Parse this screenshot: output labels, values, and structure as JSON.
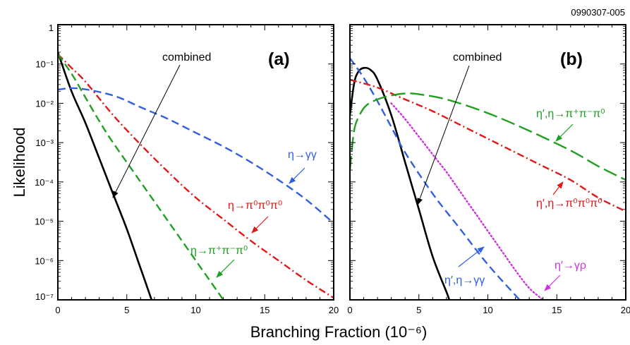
{
  "figure_id": "0990307-005",
  "ylabel": "Likelihood",
  "xlabel": "Branching Fraction (10⁻⁶)",
  "colors": {
    "combined": "#000000",
    "gammagamma": "#3060e0",
    "threepi0": "#e01818",
    "pipipi0": "#20a020",
    "gammarho": "#cc33dd"
  },
  "chart_data": [
    {
      "type": "line",
      "panel_label": "(a)",
      "xlim": [
        0,
        20
      ],
      "ylim_log10": [
        -7,
        0
      ],
      "yscale": "log",
      "x_ticks": [
        "0",
        "5",
        "10",
        "15",
        "20"
      ],
      "y_ticks": [
        "1",
        "10⁻¹",
        "10⁻²",
        "10⁻³",
        "10⁻⁴",
        "10⁻⁵",
        "10⁻⁶",
        "10⁻⁷"
      ],
      "series": [
        {
          "name": "combined",
          "color_key": "combined",
          "dash": "solid",
          "x": [
            0,
            1,
            2,
            3,
            4,
            5,
            6,
            6.8
          ],
          "log10_y": [
            -0.7,
            -1.7,
            -2.5,
            -3.4,
            -4.3,
            -5.2,
            -6.2,
            -7.0
          ]
        },
        {
          "name": "η→γγ",
          "color_key": "gammagamma",
          "dash": "medium",
          "x": [
            0,
            1.5,
            4,
            6,
            8,
            10,
            12,
            14,
            16,
            18,
            20
          ],
          "log10_y": [
            -1.65,
            -1.62,
            -1.8,
            -2.1,
            -2.4,
            -2.75,
            -3.1,
            -3.5,
            -3.95,
            -4.45,
            -5.05
          ]
        },
        {
          "name": "η→π⁰π⁰π⁰",
          "color_key": "threepi0",
          "dash": "dashdot",
          "x": [
            0,
            1,
            2,
            4,
            6,
            8,
            10,
            12,
            14,
            16,
            18,
            20
          ],
          "log10_y": [
            -0.75,
            -1.1,
            -1.45,
            -2.3,
            -3.05,
            -3.75,
            -4.4,
            -4.95,
            -5.5,
            -6.0,
            -6.5,
            -6.95
          ]
        },
        {
          "name": "η→π⁺π⁻π⁰",
          "color_key": "pipipi0",
          "dash": "medium",
          "x": [
            0,
            1,
            2,
            3,
            4,
            6,
            8,
            10,
            12
          ],
          "log10_y": [
            -0.75,
            -1.25,
            -1.85,
            -2.45,
            -3.0,
            -4.0,
            -5.0,
            -6.0,
            -7.0
          ]
        }
      ],
      "annotations": [
        {
          "text": "combined",
          "color_key": "combined"
        },
        {
          "text": "η→γγ",
          "color_key": "gammagamma"
        },
        {
          "text": "η→π⁰π⁰π⁰",
          "color_key": "threepi0"
        },
        {
          "text": "η→π⁺π⁻π⁰",
          "color_key": "pipipi0"
        }
      ]
    },
    {
      "type": "line",
      "panel_label": "(b)",
      "xlim": [
        0,
        20
      ],
      "ylim_log10": [
        -7,
        0
      ],
      "yscale": "log",
      "x_ticks": [
        "0",
        "5",
        "10",
        "15",
        "20"
      ],
      "y_ticks": [],
      "series": [
        {
          "name": "combined",
          "color_key": "combined",
          "dash": "solid",
          "x": [
            0,
            0.3,
            0.6,
            1,
            1.5,
            2,
            3,
            4,
            5,
            6,
            7,
            7.2
          ],
          "log10_y": [
            -2.3,
            -1.5,
            -1.2,
            -1.1,
            -1.15,
            -1.4,
            -2.3,
            -3.5,
            -4.7,
            -5.9,
            -6.8,
            -7.0
          ]
        },
        {
          "name": "η′,η→γγ",
          "color_key": "gammagamma",
          "dash": "medium",
          "x": [
            0,
            1,
            2,
            3,
            4,
            6,
            8,
            10,
            12.3
          ],
          "log10_y": [
            -0.85,
            -1.35,
            -1.95,
            -2.6,
            -3.25,
            -4.3,
            -5.2,
            -6.1,
            -7.0
          ]
        },
        {
          "name": "η′,η→π⁰π⁰π⁰",
          "color_key": "threepi0",
          "dash": "dashdot",
          "x": [
            0,
            2,
            4,
            6,
            8,
            10,
            12,
            14,
            16,
            18,
            20
          ],
          "log10_y": [
            -1.4,
            -1.6,
            -1.9,
            -2.2,
            -2.55,
            -2.9,
            -3.25,
            -3.6,
            -3.95,
            -4.4,
            -4.75
          ]
        },
        {
          "name": "η′,η→π⁺π⁻π⁰",
          "color_key": "pipipi0",
          "dash": "long",
          "x": [
            0,
            0.3,
            0.7,
            1.2,
            2,
            3,
            4,
            5,
            7,
            10,
            13,
            16,
            18,
            20
          ],
          "log10_y": [
            -3.7,
            -2.7,
            -2.3,
            -2.05,
            -1.9,
            -1.8,
            -1.75,
            -1.77,
            -1.9,
            -2.25,
            -2.7,
            -3.2,
            -3.6,
            -3.95
          ]
        },
        {
          "name": "η′→γρ",
          "color_key": "gammarho",
          "dash": "dotted",
          "x": [
            3,
            4,
            5,
            6,
            7,
            8,
            9,
            10,
            11,
            12,
            13,
            14
          ],
          "log10_y": [
            -2.0,
            -2.4,
            -2.85,
            -3.3,
            -3.75,
            -4.25,
            -4.75,
            -5.25,
            -5.75,
            -6.25,
            -6.7,
            -7.0
          ]
        }
      ],
      "annotations": [
        {
          "text": "combined",
          "color_key": "combined"
        },
        {
          "text": "η′,η→γγ",
          "color_key": "gammagamma"
        },
        {
          "text": "η′,η→π⁰π⁰π⁰",
          "color_key": "threepi0"
        },
        {
          "text": "η′,η→π⁺π⁻π⁰",
          "color_key": "pipipi0"
        },
        {
          "text": "η′→γρ",
          "color_key": "gammarho"
        }
      ]
    }
  ]
}
